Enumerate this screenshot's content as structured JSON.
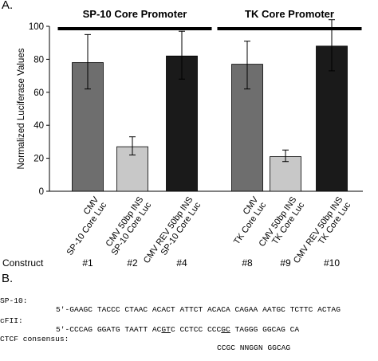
{
  "panels": {
    "a": "A.",
    "b": "B."
  },
  "chart_data": {
    "type": "bar",
    "ylabel": "Normalized Luciferase Values",
    "ylim": [
      0,
      100
    ],
    "yticks": [
      0,
      20,
      40,
      60,
      80,
      100
    ],
    "grid": false,
    "groups": [
      {
        "title": "SP-10 Core Promoter",
        "span": [
          0,
          2
        ]
      },
      {
        "title": "TK Core  Promoter",
        "span": [
          3,
          5
        ]
      }
    ],
    "construct_prefix": "Construct",
    "categories": [
      {
        "lines": [
          "CMV",
          "SP-10 Core Luc"
        ],
        "construct": "#1",
        "value": 78,
        "err_low": 62,
        "err_high": 95,
        "color": "#6e6e6e"
      },
      {
        "lines": [
          "CMV 50bp INS",
          "SP-10 Core Luc"
        ],
        "construct": "#2",
        "value": 27,
        "err_low": 22,
        "err_high": 33,
        "color": "#c8c8c8"
      },
      {
        "lines": [
          "CMV REV 50bp INS",
          "SP-10 Core Luc"
        ],
        "construct": "#4",
        "value": 82,
        "err_low": 68,
        "err_high": 97,
        "color": "#1a1a1a"
      },
      {
        "lines": [
          "CMV",
          "TK Core Luc"
        ],
        "construct": "#8",
        "value": 77,
        "err_low": 62,
        "err_high": 91,
        "color": "#6e6e6e"
      },
      {
        "lines": [
          "CMV 50bp INS",
          "TK Core Luc"
        ],
        "construct": "#9",
        "value": 21,
        "err_low": 18,
        "err_high": 25,
        "color": "#c8c8c8"
      },
      {
        "lines": [
          "CMV REV 50bp INS",
          "TK Core Luc"
        ],
        "construct": "#10",
        "value": 88,
        "err_low": 73,
        "err_high": 104,
        "color": "#1a1a1a"
      }
    ]
  },
  "sequences": [
    {
      "label": "SP-10:",
      "prefix": "5'-GAAGC TACCC CTAAC ACACT ATTCT ACACA CAGAA AATGC TCTTC ACTAG",
      "mid1": "",
      "u1": "",
      "mid2": "",
      "u2": "",
      "suffix": ""
    },
    {
      "label": "cFII:",
      "prefix": "5'-CCCAG GGATG TAATT AC",
      "u1": "GT",
      "mid1": "C CCTCC CCC",
      "u2": "GC",
      "suffix": " TAGGG GGCAG CA",
      "mid2": ""
    },
    {
      "label": "CTCF consensus:",
      "prefix": "",
      "mid1": "",
      "u1": "",
      "mid2": "",
      "u2": "",
      "suffix": "CCGC NNGGN GGCAG"
    }
  ]
}
